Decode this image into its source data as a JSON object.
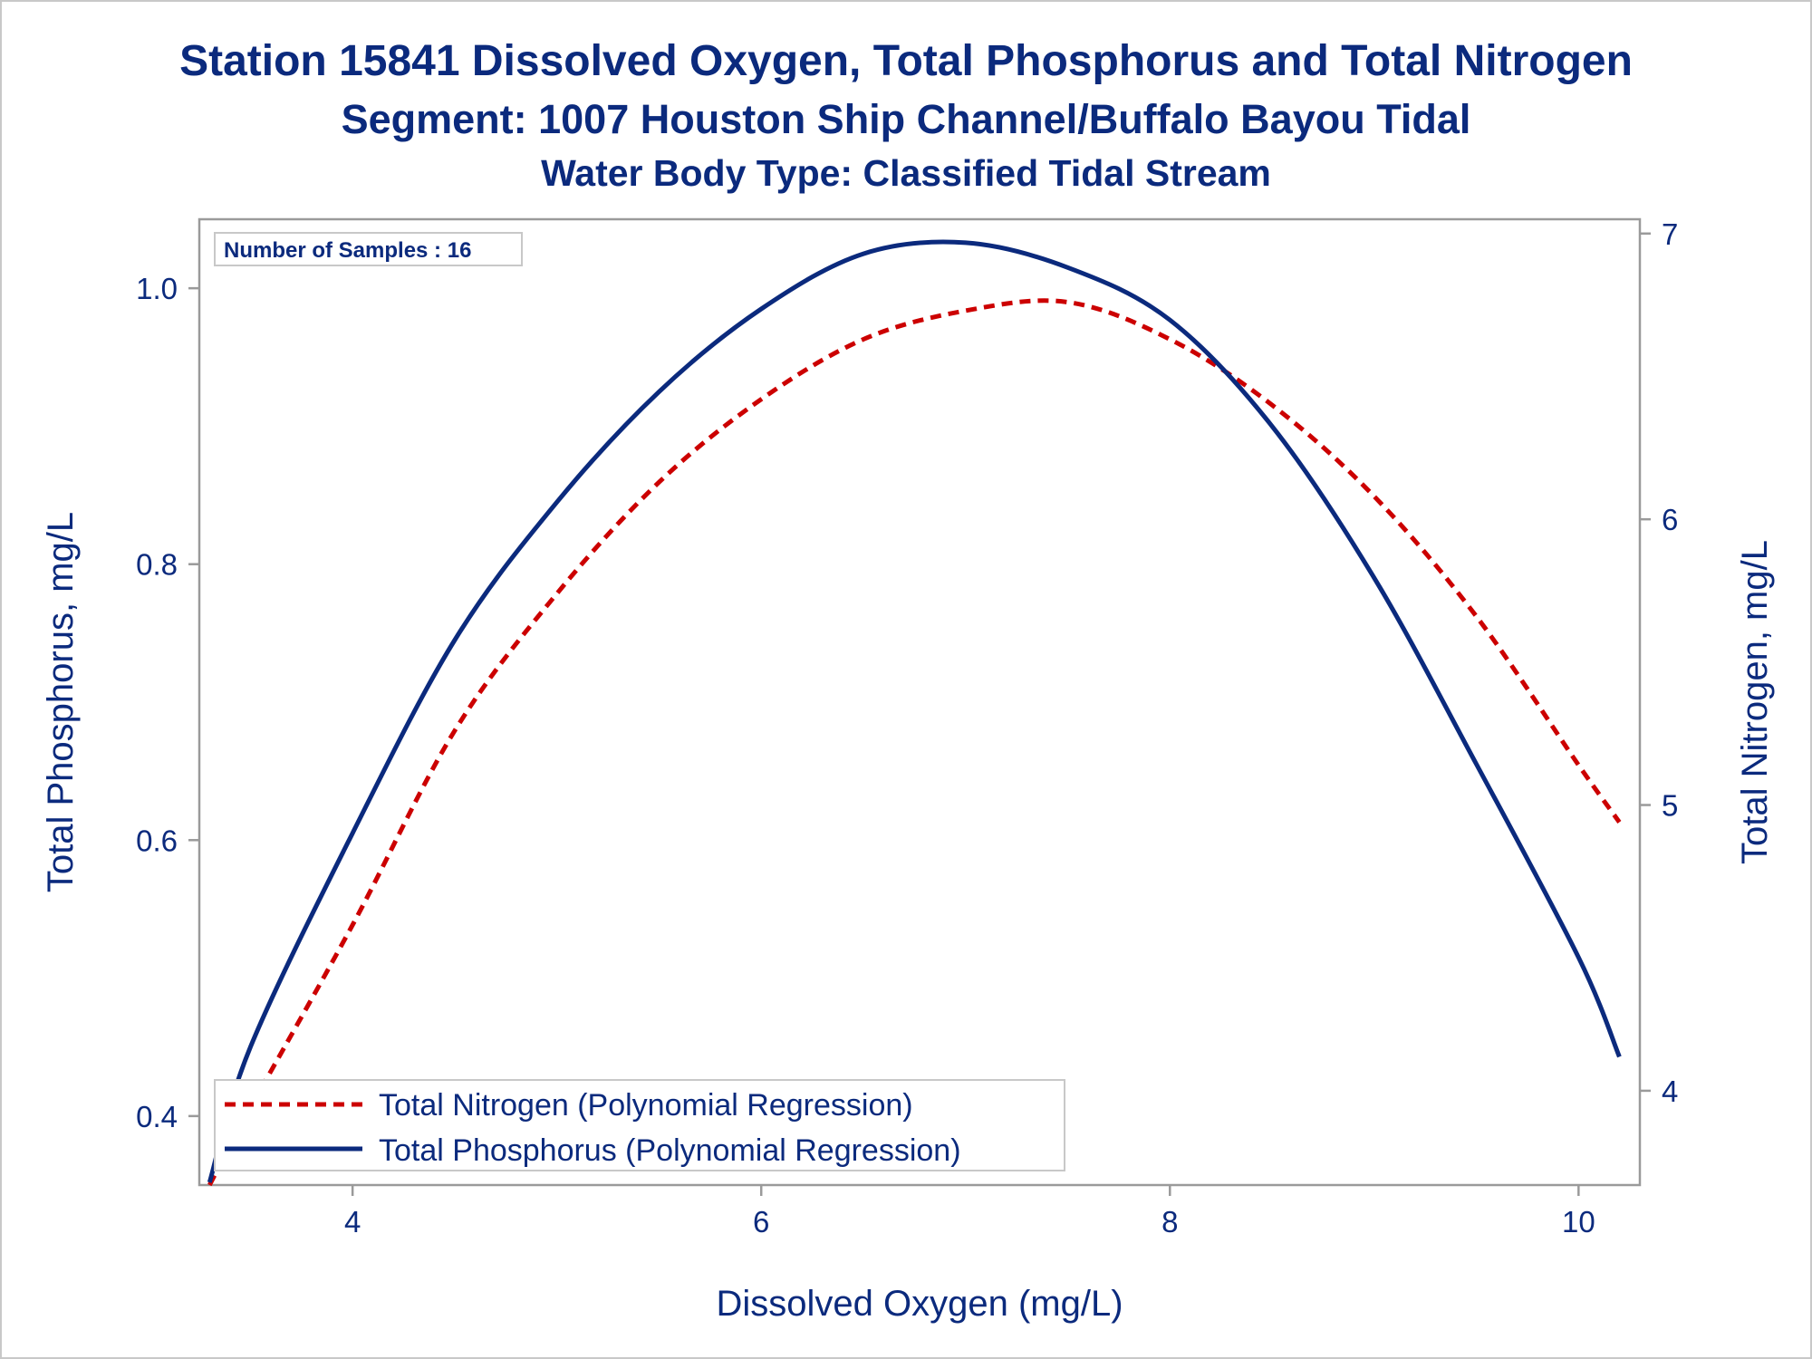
{
  "chart_data": {
    "type": "line",
    "title": "Station 15841  Dissolved Oxygen, Total Phosphorus and Total Nitrogen",
    "subtitle": "Segment: 1007  Houston Ship Channel/Buffalo Bayou Tidal",
    "subtitle2": "Water Body Type: Classified Tidal Stream",
    "xlabel": "Dissolved Oxygen (mg/L)",
    "ylabel": "Total Phosphorus, mg/L",
    "y2label": "Total Nitrogen, mg/L",
    "xlim": [
      3.25,
      10.3
    ],
    "ylim": [
      0.35,
      1.05
    ],
    "y2lim": [
      3.67,
      7.05
    ],
    "xticks": [
      "4",
      "6",
      "8",
      "10"
    ],
    "xtick_values": [
      4,
      6,
      8,
      10
    ],
    "yticks": [
      "0.4",
      "0.6",
      "0.8",
      "1.0"
    ],
    "ytick_values": [
      0.4,
      0.6,
      0.8,
      1.0
    ],
    "y2ticks": [
      "4",
      "5",
      "6",
      "7"
    ],
    "y2tick_values": [
      4,
      5,
      6,
      7
    ],
    "inset": "Number of Samples : 16",
    "legend_position": "bottom-left",
    "series": [
      {
        "name": "Total Nitrogen (Polynomial Regression)",
        "axis": "right",
        "color": "#cc0000",
        "style": "dashed",
        "x": [
          3.3,
          3.5,
          4.0,
          4.5,
          5.0,
          5.5,
          6.0,
          6.5,
          7.0,
          7.5,
          8.0,
          8.5,
          9.0,
          9.5,
          10.0,
          10.2
        ],
        "y": [
          3.67,
          3.94,
          4.58,
          5.26,
          5.74,
          6.13,
          6.42,
          6.63,
          6.73,
          6.76,
          6.63,
          6.4,
          6.08,
          5.66,
          5.14,
          4.94
        ]
      },
      {
        "name": "Total Phosphorus (Polynomial Regression)",
        "axis": "left",
        "color": "#0b2a7d",
        "style": "solid",
        "x": [
          3.3,
          3.5,
          4.0,
          4.5,
          5.0,
          5.5,
          6.0,
          6.5,
          7.0,
          7.5,
          8.0,
          8.5,
          9.0,
          9.5,
          10.0,
          10.2
        ],
        "y": [
          0.352,
          0.45,
          0.605,
          0.745,
          0.845,
          0.925,
          0.985,
          1.025,
          1.033,
          1.015,
          0.977,
          0.9,
          0.79,
          0.655,
          0.515,
          0.443
        ]
      }
    ]
  }
}
